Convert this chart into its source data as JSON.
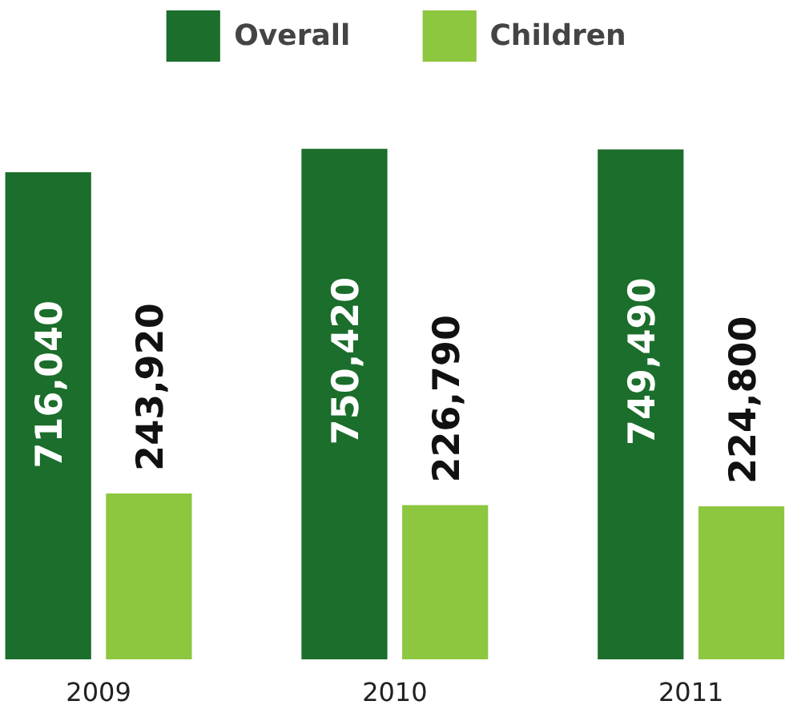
{
  "chart_data": {
    "type": "bar",
    "categories": [
      "2009",
      "2010",
      "2011"
    ],
    "series": [
      {
        "name": "Overall",
        "color": "#1b6e2b",
        "values": [
          716040,
          750420,
          749490
        ],
        "value_labels": [
          "716,040",
          "750,420",
          "749,490"
        ]
      },
      {
        "name": "Children",
        "color": "#8dc63f",
        "values": [
          243920,
          226790,
          224800
        ],
        "value_labels": [
          "243,920",
          "226,790",
          "224,800"
        ]
      }
    ],
    "legend": "top",
    "grid": false
  }
}
